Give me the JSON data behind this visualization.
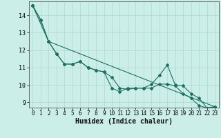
{
  "xlabel": "Humidex (Indice chaleur)",
  "bg_color": "#cceee8",
  "grid_color": "#aad8d0",
  "line_color": "#1e6e62",
  "xlim": [
    -0.5,
    23.5
  ],
  "ylim": [
    8.7,
    14.8
  ],
  "yticks": [
    9,
    10,
    11,
    12,
    13,
    14
  ],
  "xticks": [
    0,
    1,
    2,
    3,
    4,
    5,
    6,
    7,
    8,
    9,
    10,
    11,
    12,
    13,
    14,
    15,
    16,
    17,
    18,
    19,
    20,
    21,
    22,
    23
  ],
  "series1_x": [
    0,
    1,
    2,
    3,
    4,
    5,
    6,
    7,
    8,
    9,
    10,
    11,
    12,
    13,
    14,
    15,
    16,
    17,
    18,
    19,
    20,
    21,
    22,
    23
  ],
  "series1_y": [
    14.55,
    13.75,
    12.5,
    11.8,
    11.2,
    11.2,
    11.35,
    11.0,
    10.85,
    10.75,
    10.45,
    9.82,
    9.75,
    9.82,
    9.82,
    9.82,
    10.05,
    10.05,
    9.95,
    9.5,
    9.25,
    8.82,
    8.68,
    8.75
  ],
  "series2_x": [
    0,
    1,
    2,
    3,
    4,
    5,
    6,
    7,
    8,
    9,
    10,
    11,
    12,
    13,
    14,
    15,
    16,
    17,
    18,
    19,
    20,
    21,
    22,
    23
  ],
  "series2_y": [
    14.55,
    13.75,
    12.5,
    11.8,
    11.2,
    11.2,
    11.35,
    11.0,
    10.85,
    10.75,
    9.82,
    9.62,
    9.82,
    9.82,
    9.82,
    10.05,
    10.55,
    11.15,
    10.0,
    9.95,
    9.5,
    9.25,
    8.68,
    8.75
  ],
  "series3_x": [
    0,
    2,
    23
  ],
  "series3_y": [
    14.55,
    12.5,
    8.75
  ],
  "markersize": 2.0,
  "linewidth": 0.8,
  "font_size_label": 7,
  "font_size_tick": 6
}
